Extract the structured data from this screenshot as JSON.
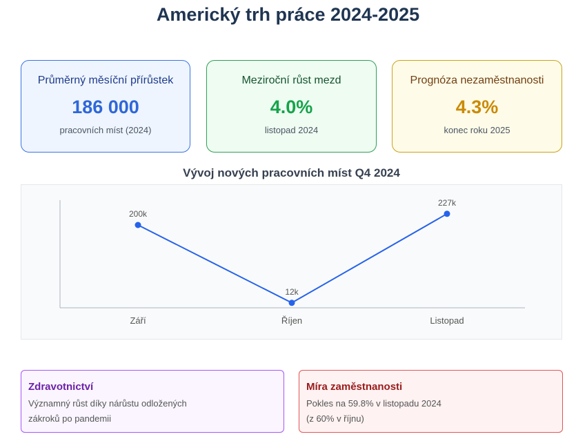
{
  "title": "Americký trh práce 2024-2025",
  "cards": [
    {
      "label": "Průměrný měsíční přírůstek",
      "value": "186 000",
      "sub": "pracovních míst (2024)",
      "color": "#2f67d8"
    },
    {
      "label": "Meziroční růst mezd",
      "value": "4.0%",
      "sub": "listopad 2024",
      "color": "#16a34a"
    },
    {
      "label": "Prognóza nezaměstnanosti",
      "value": "4.3%",
      "sub": "konec roku 2025",
      "color": "#ca8a04"
    }
  ],
  "chart_title": "Vývoj nových pracovních míst Q4 2024",
  "chart_data": {
    "type": "line",
    "title": "Vývoj nových pracovních míst Q4 2024",
    "categories": [
      "Září",
      "Říjen",
      "Listopad"
    ],
    "values": [
      200,
      12,
      227
    ],
    "data_labels": [
      "200k",
      "12k",
      "227k"
    ],
    "ylim": [
      0,
      260
    ],
    "grid": false,
    "line_color": "#2563eb"
  },
  "notes": [
    {
      "title": "Zdravotnictví",
      "lines": [
        "Významný růst díky nárůstu odložených",
        "zákroků po pandemii"
      ]
    },
    {
      "title": "Míra zaměstnanosti",
      "lines": [
        "Pokles na 59.8% v listopadu 2024",
        "(z 60% v říjnu)"
      ]
    }
  ]
}
